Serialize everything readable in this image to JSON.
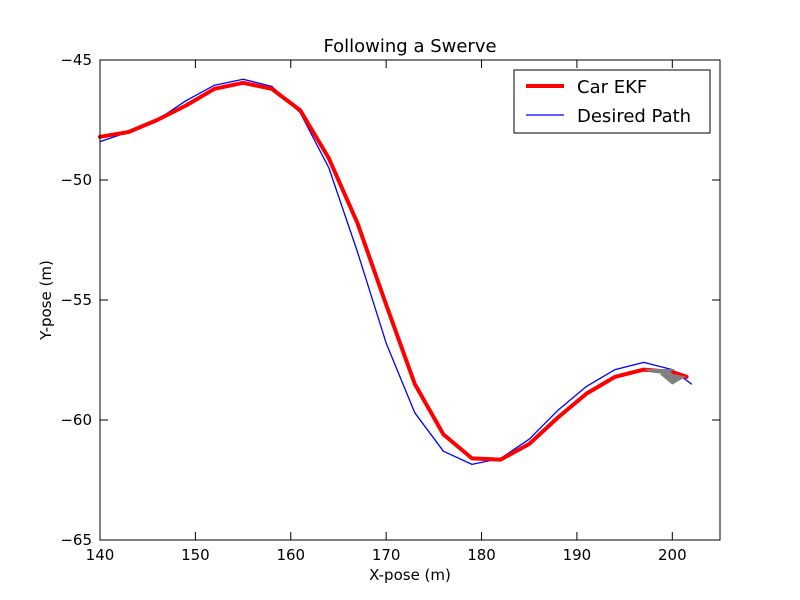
{
  "chart_data": {
    "type": "line",
    "title": "Following a Swerve",
    "xlabel": "X-pose (m)",
    "ylabel": "Y-pose (m)",
    "xlim": [
      140,
      205
    ],
    "ylim": [
      -65,
      -45
    ],
    "xticks": [
      140,
      150,
      160,
      170,
      180,
      190,
      200
    ],
    "yticks": [
      -45,
      -50,
      -55,
      -60,
      -65
    ],
    "xtick_labels": [
      "140",
      "150",
      "160",
      "170",
      "180",
      "190",
      "200"
    ],
    "ytick_labels": [
      "−45",
      "−50",
      "−55",
      "−60",
      "−65"
    ],
    "grid": false,
    "legend_position": "top-right",
    "series": [
      {
        "name": "Car EKF",
        "color": "#ff0000",
        "style": "thick",
        "x": [
          140,
          143,
          146,
          149,
          152,
          155,
          158,
          161,
          164,
          167,
          170,
          173,
          176,
          179,
          182,
          185,
          188,
          191,
          194,
          197,
          200,
          201.5
        ],
        "y": [
          -48.2,
          -48.0,
          -47.5,
          -46.9,
          -46.2,
          -45.95,
          -46.2,
          -47.1,
          -49.1,
          -51.8,
          -55.2,
          -58.5,
          -60.6,
          -61.6,
          -61.65,
          -61.0,
          -59.9,
          -58.9,
          -58.2,
          -57.9,
          -58.0,
          -58.2
        ]
      },
      {
        "name": "Desired Path",
        "color": "#0000ff",
        "style": "thin",
        "x": [
          140,
          143,
          146,
          149,
          152,
          155,
          158,
          161,
          164,
          167,
          170,
          173,
          176,
          179,
          182,
          185,
          188,
          191,
          194,
          197,
          200,
          202
        ],
        "y": [
          -48.4,
          -48.0,
          -47.5,
          -46.7,
          -46.05,
          -45.8,
          -46.1,
          -47.2,
          -49.5,
          -53.0,
          -56.8,
          -59.7,
          -61.3,
          -61.85,
          -61.6,
          -60.8,
          -59.6,
          -58.6,
          -57.9,
          -57.6,
          -57.9,
          -58.5
        ]
      }
    ],
    "annotations": [
      {
        "type": "heading-arrow",
        "color": "#808080",
        "x": [
          200,
          199.6,
          197.2,
          197.8
        ],
        "y": [
          -58.1,
          -57.9,
          -57.9,
          -58.0
        ]
      },
      {
        "type": "heading-arrow",
        "color": "#808080",
        "x": [
          201.3,
          200,
          198.8,
          200.2,
          197.5
        ],
        "y": [
          -58.2,
          -58.5,
          -58.1,
          -57.9,
          -57.9
        ]
      }
    ]
  }
}
